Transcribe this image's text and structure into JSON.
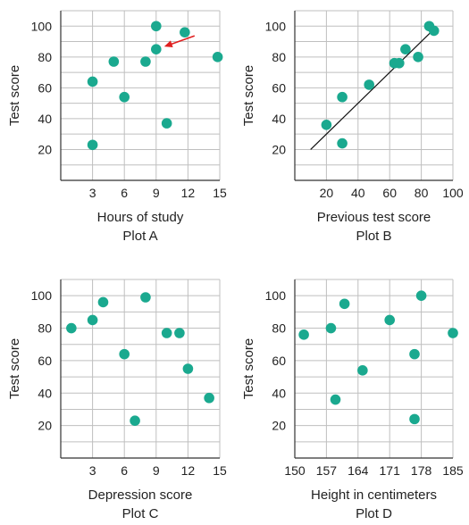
{
  "colors": {
    "point": "#1aa98f",
    "grid": "#bfbfbf",
    "axis": "#333333",
    "arrow": "#e02020",
    "fitline": "#111111"
  },
  "chart_data": [
    {
      "type": "scatter",
      "title": "Plot A",
      "xlabel": "Hours of study",
      "ylabel": "Test score",
      "xlim": [
        0,
        15
      ],
      "ylim": [
        0,
        110
      ],
      "xticks": [
        3,
        6,
        9,
        12,
        15
      ],
      "yticks": [
        20,
        40,
        60,
        80,
        100
      ],
      "grid": true,
      "x": [
        3,
        3,
        5,
        6,
        8,
        9,
        9,
        10,
        11.7,
        14.8
      ],
      "y": [
        23,
        64,
        77,
        54,
        77,
        85,
        100,
        37,
        96,
        80
      ],
      "annotation": {
        "type": "arrow",
        "points_to": [
          9,
          85
        ]
      }
    },
    {
      "type": "scatter",
      "title": "Plot B",
      "xlabel": "Previous test score",
      "ylabel": "Test score",
      "xlim": [
        0,
        100
      ],
      "ylim": [
        0,
        110
      ],
      "xticks": [
        20,
        40,
        60,
        80,
        100
      ],
      "yticks": [
        20,
        40,
        60,
        80,
        100
      ],
      "grid": true,
      "x": [
        20,
        30,
        30,
        47,
        63,
        66,
        70,
        78,
        85,
        88
      ],
      "y": [
        36,
        54,
        24,
        62,
        76,
        76,
        85,
        80,
        100,
        97
      ],
      "fit_line": {
        "x": [
          10,
          88
        ],
        "y": [
          20,
          98
        ]
      }
    },
    {
      "type": "scatter",
      "title": "Plot C",
      "xlabel": "Depression score",
      "ylabel": "Test score",
      "xlim": [
        0,
        15
      ],
      "ylim": [
        0,
        110
      ],
      "xticks": [
        3,
        6,
        9,
        12,
        15
      ],
      "yticks": [
        20,
        40,
        60,
        80,
        100
      ],
      "grid": true,
      "x": [
        1,
        3,
        4,
        6,
        7,
        8,
        10,
        11.2,
        12,
        14
      ],
      "y": [
        80,
        85,
        96,
        64,
        23,
        99,
        77,
        77,
        55,
        37
      ]
    },
    {
      "type": "scatter",
      "title": "Plot D",
      "xlabel": "Height in centimeters",
      "ylabel": "Test score",
      "xlim": [
        150,
        185
      ],
      "ylim": [
        0,
        110
      ],
      "xticks": [
        150,
        157,
        164,
        171,
        178,
        185
      ],
      "yticks": [
        20,
        40,
        60,
        80,
        100
      ],
      "grid": true,
      "x": [
        152,
        158,
        159,
        161,
        165,
        171,
        176.5,
        176.5,
        178,
        185
      ],
      "y": [
        76,
        80,
        36,
        95,
        54,
        85,
        64,
        24,
        100,
        77
      ]
    }
  ]
}
